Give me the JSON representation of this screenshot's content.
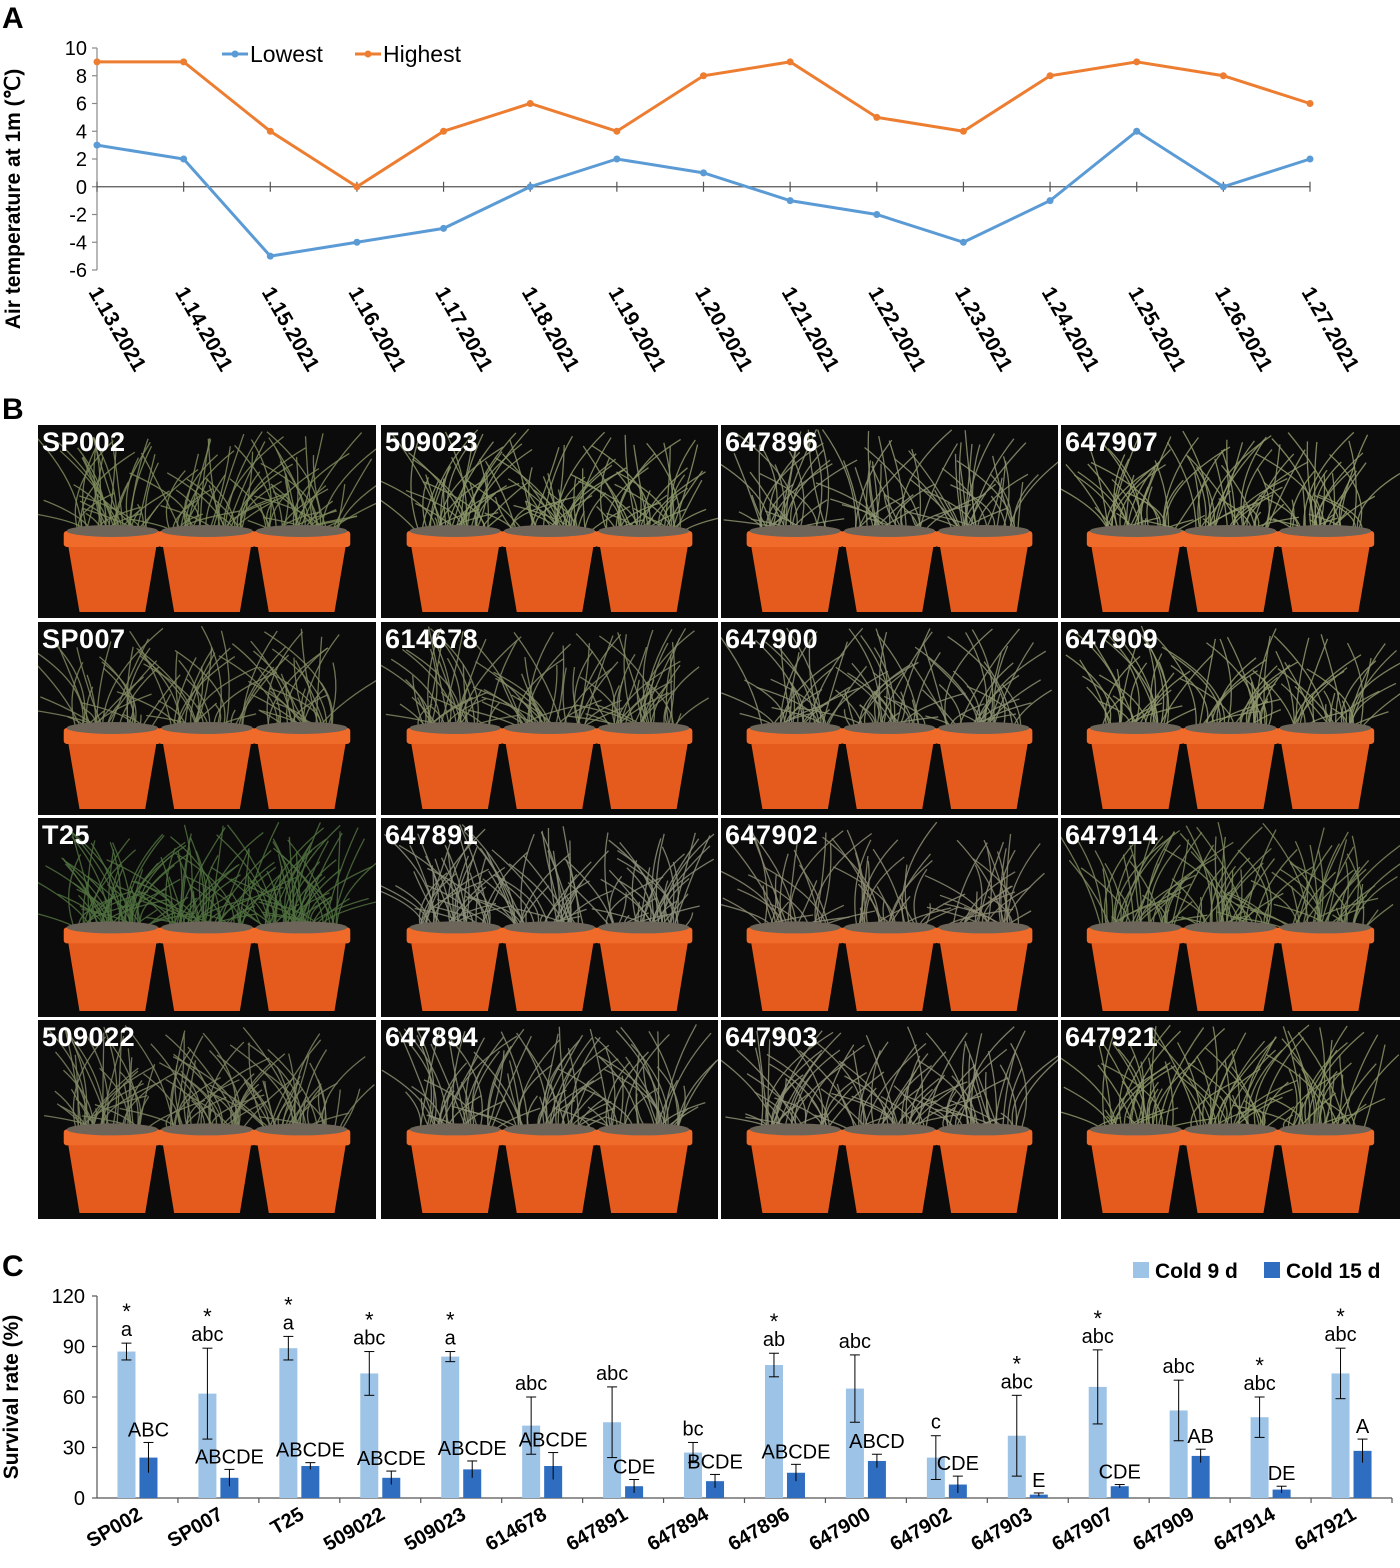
{
  "panels": {
    "a": "A",
    "b": "B",
    "c": "C"
  },
  "chart_data": [
    {
      "type": "line",
      "ylabel": "Air temperature at 1m (℃)",
      "xlabel": "",
      "ylim": [
        -6,
        10
      ],
      "yticks": [
        -6,
        -4,
        -2,
        0,
        2,
        4,
        6,
        8,
        10
      ],
      "categories": [
        "1.13.2021",
        "1.14.2021",
        "1.15.2021",
        "1.16.2021",
        "1.17.2021",
        "1.18.2021",
        "1.19.2021",
        "1.20.2021",
        "1.21.2021",
        "1.22.2021",
        "1.23.2021",
        "1.24.2021",
        "1.25.2021",
        "1.26.2021",
        "1.27.2021"
      ],
      "series": [
        {
          "name": "Lowest",
          "color": "#5b9bd5",
          "values": [
            3,
            2,
            -5,
            -4,
            -3,
            0,
            2,
            1,
            -1,
            -2,
            -4,
            -1,
            4,
            0,
            2
          ]
        },
        {
          "name": "Highest",
          "color": "#ed7d31",
          "values": [
            9,
            9,
            4,
            0,
            4,
            6,
            4,
            8,
            9,
            5,
            4,
            8,
            9,
            8,
            6
          ]
        }
      ],
      "legend": "top-left"
    },
    {
      "type": "bar",
      "ylabel": "Survival rate (%)",
      "ylim": [
        0,
        120
      ],
      "yticks": [
        0,
        30,
        60,
        90,
        120
      ],
      "categories": [
        "SP002",
        "SP007",
        "T25",
        "509022",
        "509023",
        "614678",
        "647891",
        "647894",
        "647896",
        "647900",
        "647902",
        "647903",
        "647907",
        "647909",
        "647914",
        "647921"
      ],
      "series": [
        {
          "name": "Cold 9 d",
          "color": "#9dc3e6",
          "values": [
            87,
            62,
            89,
            74,
            84,
            43,
            45,
            27,
            79,
            65,
            24,
            37,
            66,
            52,
            48,
            74
          ],
          "errors": [
            5,
            27,
            7,
            13,
            3,
            17,
            21,
            6,
            7,
            20,
            13,
            24,
            22,
            18,
            12,
            15
          ],
          "letters": [
            "a",
            "abc",
            "a",
            "abc",
            "a",
            "abc",
            "abc",
            "bc",
            "ab",
            "abc",
            "c",
            "abc",
            "abc",
            "abc",
            "abc",
            "abc"
          ],
          "stars": [
            true,
            true,
            true,
            true,
            true,
            false,
            false,
            false,
            true,
            false,
            false,
            true,
            true,
            false,
            true,
            true
          ]
        },
        {
          "name": "Cold 15 d",
          "color": "#2e6dbf",
          "values": [
            24,
            12,
            19,
            12,
            17,
            19,
            7,
            10,
            15,
            22,
            8,
            2,
            7,
            25,
            5,
            28
          ],
          "errors": [
            9,
            5,
            2,
            4,
            5,
            8,
            4,
            4,
            5,
            4,
            5,
            1,
            1,
            4,
            2,
            7
          ],
          "letters": [
            "ABC",
            "ABCDE",
            "ABCDE",
            "ABCDE",
            "ABCDE",
            "ABCDE",
            "CDE",
            "BCDE",
            "ABCDE",
            "ABCD",
            "CDE",
            "E",
            "CDE",
            "AB",
            "DE",
            "A"
          ]
        }
      ],
      "legend": "top-right"
    }
  ],
  "photos": {
    "tiles": [
      {
        "label": "SP002",
        "grass": "#7d8a5c",
        "density": 1.0
      },
      {
        "label": "509023",
        "grass": "#8a9568",
        "density": 1.0
      },
      {
        "label": "647896",
        "grass": "#8c9471",
        "density": 0.8
      },
      {
        "label": "647907",
        "grass": "#909a6c",
        "density": 0.9
      },
      {
        "label": "SP007",
        "grass": "#7f8760",
        "density": 0.8
      },
      {
        "label": "614678",
        "grass": "#838b66",
        "density": 0.9
      },
      {
        "label": "647900",
        "grass": "#8a9070",
        "density": 0.8
      },
      {
        "label": "647909",
        "grass": "#8e966c",
        "density": 0.8
      },
      {
        "label": "T25",
        "grass": "#4f6e3e",
        "density": 1.4
      },
      {
        "label": "647891",
        "grass": "#8b8f78",
        "density": 1.0
      },
      {
        "label": "647902",
        "grass": "#8d8b72",
        "density": 0.7
      },
      {
        "label": "647914",
        "grass": "#7c8a5e",
        "density": 1.0
      },
      {
        "label": "509022",
        "grass": "#7d8563",
        "density": 1.0
      },
      {
        "label": "647894",
        "grass": "#8b8e72",
        "density": 0.9
      },
      {
        "label": "647903",
        "grass": "#8f9175",
        "density": 0.9
      },
      {
        "label": "647921",
        "grass": "#8a9466",
        "density": 0.9
      }
    ]
  }
}
